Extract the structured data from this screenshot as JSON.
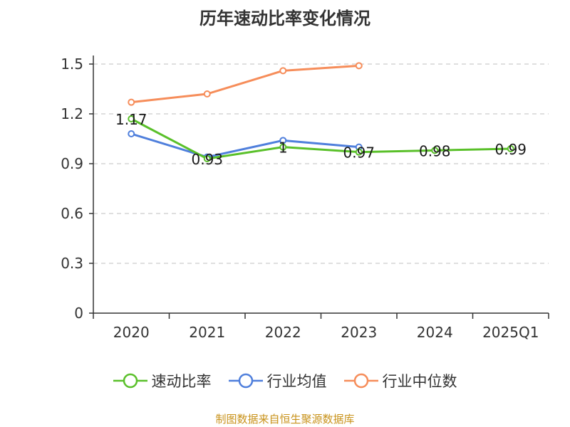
{
  "chart_data": {
    "type": "line",
    "title": "历年速动比率变化情况",
    "categories": [
      "2020",
      "2021",
      "2022",
      "2023",
      "2024",
      "2025Q1"
    ],
    "series": [
      {
        "name": "速动比率",
        "color": "#5ac02a",
        "values": [
          1.17,
          0.93,
          1.0,
          0.97,
          0.98,
          0.99
        ],
        "labels": [
          "1.17",
          "0.93",
          "1",
          "0.97",
          "0.98",
          "0.99"
        ]
      },
      {
        "name": "行业均值",
        "color": "#4f7fdc",
        "values": [
          1.08,
          0.94,
          1.04,
          1.0,
          null,
          null
        ]
      },
      {
        "name": "行业中位数",
        "color": "#f68d5a",
        "values": [
          1.27,
          1.32,
          1.46,
          1.49,
          null,
          null
        ]
      }
    ],
    "ylim": [
      0,
      1.5
    ],
    "yticks": [
      "0",
      "0.3",
      "0.6",
      "0.9",
      "1.2",
      "1.5"
    ],
    "ytick_values": [
      0,
      0.3,
      0.6,
      0.9,
      1.2,
      1.5
    ],
    "grid": true,
    "legend_position": "bottom"
  },
  "source": "制图数据来自恒生聚源数据库"
}
